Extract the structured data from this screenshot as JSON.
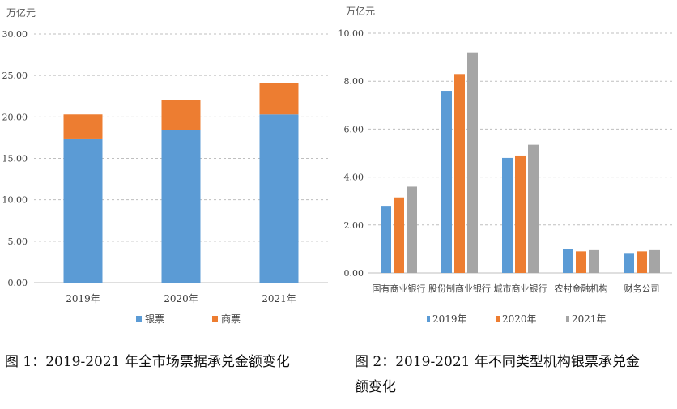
{
  "chart_data": [
    {
      "type": "bar",
      "stacked": true,
      "unit": "万亿元",
      "categories": [
        "2019年",
        "2020年",
        "2021年"
      ],
      "series": [
        {
          "name": "银票",
          "values": [
            17.3,
            18.4,
            20.3
          ],
          "color": "#5b9bd5"
        },
        {
          "name": "商票",
          "values": [
            3.0,
            3.6,
            3.8
          ],
          "color": "#ed7d31"
        }
      ],
      "ylim": [
        0,
        30
      ],
      "yticks": [
        "0.00",
        "5.00",
        "10.00",
        "15.00",
        "20.00",
        "25.00",
        "30.00"
      ],
      "grid": true,
      "legend": "bottom"
    },
    {
      "type": "bar",
      "stacked": false,
      "unit": "万亿元",
      "categories": [
        "国有商业银行",
        "股份制商业银行",
        "城市商业银行",
        "农村金融机构",
        "财务公司"
      ],
      "series": [
        {
          "name": "2019年",
          "values": [
            2.8,
            7.6,
            4.8,
            1.0,
            0.8
          ],
          "color": "#5b9bd5"
        },
        {
          "name": "2020年",
          "values": [
            3.15,
            8.3,
            4.9,
            0.9,
            0.9
          ],
          "color": "#ed7d31"
        },
        {
          "name": "2021年",
          "values": [
            3.6,
            9.2,
            5.35,
            0.95,
            0.95
          ],
          "color": "#a5a5a5"
        }
      ],
      "ylim": [
        0,
        10
      ],
      "yticks": [
        "0.00",
        "2.00",
        "4.00",
        "6.00",
        "8.00",
        "10.00"
      ],
      "grid": true,
      "legend": "bottom"
    }
  ],
  "captions": {
    "fig1": "图 1：2019-2021 年全市场票据承兑金额变化",
    "fig2_line1": "图 2：2019-2021 年不同类型机构银票承兑金",
    "fig2_line2": "额变化"
  }
}
